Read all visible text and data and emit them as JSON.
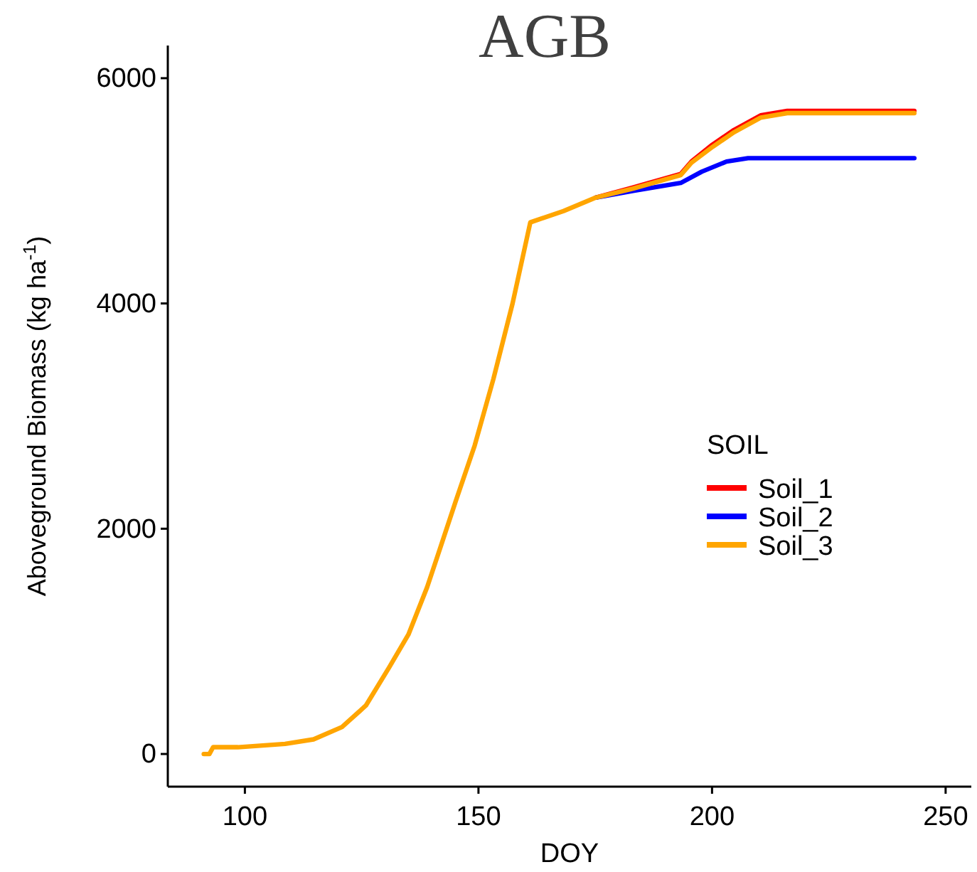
{
  "chart_data": {
    "type": "line",
    "title": "AGB",
    "xlabel": "DOY",
    "ylabel": "Aboveground Biomass (kg ha$^{-1}$)",
    "legend_title": "SOIL",
    "legend": "right",
    "grid": false,
    "line_style": "solid",
    "xlim": [
      83.5,
      255.5
    ],
    "xticks": [
      100,
      150,
      200,
      250
    ],
    "ylim": [
      -290,
      6290
    ],
    "yticks": [
      0,
      2000,
      4000,
      6000
    ],
    "series": [
      {
        "name": "Soil_1",
        "color": "#ff0000",
        "x": [
          175.1,
          183.1,
          193.3,
          195.6,
          200.1,
          204.7,
          210.4,
          216.1,
          243.3
        ],
        "values": [
          4940,
          5030,
          5150,
          5260,
          5410,
          5540,
          5670,
          5710,
          5710
        ]
      },
      {
        "name": "Soil_2",
        "color": "#0000ff",
        "x": [
          175.1,
          183.1,
          193.3,
          197.8,
          203.1,
          207.7,
          243.3
        ],
        "values": [
          4940,
          5000,
          5070,
          5170,
          5260,
          5290,
          5290
        ]
      },
      {
        "name": "Soil_3",
        "color": "#ffa500",
        "x": [
          91.2,
          92.4,
          93.2,
          98.5,
          108.6,
          114.7,
          120.8,
          125.9,
          130.9,
          135,
          139,
          141.1,
          145.1,
          149.2,
          153.2,
          157.3,
          161.1,
          168.2,
          175.1,
          183.1,
          193.3,
          195.6,
          200.1,
          204.7,
          210.4,
          216.1,
          243.3
        ],
        "values": [
          0,
          0,
          60,
          60,
          90,
          130,
          240,
          430,
          770,
          1060,
          1480,
          1740,
          2240,
          2740,
          3330,
          4000,
          4720,
          4820,
          4940,
          5020,
          5140,
          5250,
          5390,
          5520,
          5650,
          5690,
          5690
        ]
      }
    ]
  }
}
